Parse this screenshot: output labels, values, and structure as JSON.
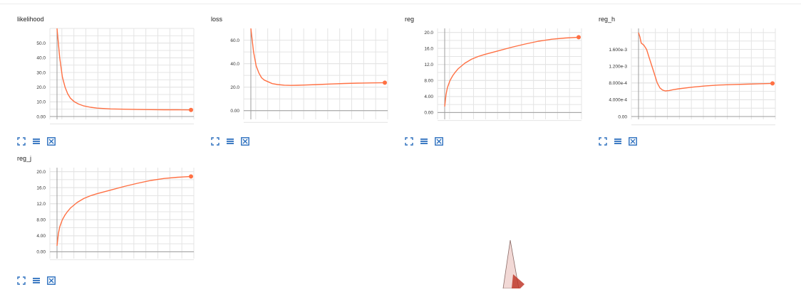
{
  "colors": {
    "series": "#ff7043",
    "grid": "#e4e4e4",
    "axis": "#9e9e9e",
    "control": "#2a6ebd"
  },
  "icons": [
    "fullscreen-icon",
    "list-icon",
    "fit-domain-icon"
  ],
  "chart_data": [
    {
      "type": "line",
      "title": "likelihood",
      "ylim": [
        0,
        60
      ],
      "yticks": [
        "0.00",
        "10.0",
        "20.0",
        "30.0",
        "40.0",
        "50.0"
      ],
      "ytick_values": [
        0,
        10,
        20,
        30,
        40,
        50
      ],
      "grid": true,
      "x": [
        0,
        0.02,
        0.04,
        0.06,
        0.08,
        0.1,
        0.13,
        0.16,
        0.2,
        0.25,
        0.3,
        0.4,
        0.5,
        0.6,
        0.7,
        0.8,
        0.9,
        1.0
      ],
      "y": [
        60,
        40,
        27,
        20,
        15.5,
        12.5,
        10,
        8.5,
        7.2,
        6.3,
        5.7,
        5.2,
        5.0,
        4.8,
        4.7,
        4.6,
        4.6,
        4.5
      ]
    },
    {
      "type": "line",
      "title": "loss",
      "ylim": [
        -5,
        70
      ],
      "yticks": [
        "0.00",
        "20.0",
        "40.0",
        "60.0"
      ],
      "ytick_values": [
        0,
        20,
        40,
        60
      ],
      "grid": true,
      "x": [
        0,
        0.02,
        0.04,
        0.06,
        0.08,
        0.1,
        0.13,
        0.16,
        0.2,
        0.25,
        0.3,
        0.35,
        0.4,
        0.5,
        0.6,
        0.7,
        0.8,
        0.9,
        1.0
      ],
      "y": [
        70,
        50,
        38,
        32,
        28,
        26,
        24.5,
        23,
        22.2,
        21.7,
        21.5,
        21.6,
        21.8,
        22.2,
        22.7,
        23.1,
        23.4,
        23.6,
        23.8
      ]
    },
    {
      "type": "line",
      "title": "reg",
      "ylim": [
        -1,
        21
      ],
      "yticks": [
        "0.00",
        "4.00",
        "8.00",
        "12.0",
        "16.0",
        "20.0"
      ],
      "ytick_values": [
        0,
        4,
        8,
        12,
        16,
        20
      ],
      "grid": true,
      "x": [
        0,
        0.01,
        0.02,
        0.04,
        0.06,
        0.08,
        0.1,
        0.15,
        0.2,
        0.25,
        0.3,
        0.4,
        0.5,
        0.6,
        0.7,
        0.8,
        0.9,
        1.0
      ],
      "y": [
        1.5,
        4.5,
        6.2,
        8.0,
        9.2,
        10.1,
        10.9,
        12.3,
        13.3,
        14.0,
        14.5,
        15.4,
        16.3,
        17.1,
        17.8,
        18.3,
        18.6,
        18.8
      ]
    },
    {
      "type": "line",
      "title": "reg_h",
      "ylim": [
        0,
        0.0021
      ],
      "yticks": [
        "0.00",
        "4.000e-4",
        "8.000e-4",
        "1.200e-3",
        "1.600e-3"
      ],
      "ytick_values": [
        0,
        0.0004,
        0.0008,
        0.0012,
        0.0016
      ],
      "grid": true,
      "x": [
        0,
        0.01,
        0.02,
        0.04,
        0.06,
        0.08,
        0.1,
        0.12,
        0.14,
        0.16,
        0.18,
        0.2,
        0.23,
        0.26,
        0.3,
        0.4,
        0.5,
        0.6,
        0.7,
        0.8,
        0.9,
        1.0
      ],
      "y": [
        0.002,
        0.0019,
        0.00175,
        0.0017,
        0.0016,
        0.0014,
        0.0012,
        0.001,
        0.0008,
        0.00068,
        0.00063,
        0.00061,
        0.00062,
        0.00064,
        0.00066,
        0.0007,
        0.00073,
        0.00075,
        0.00076,
        0.00077,
        0.00078,
        0.00079
      ]
    },
    {
      "type": "line",
      "title": "reg_j",
      "ylim": [
        -1,
        21
      ],
      "yticks": [
        "0.00",
        "4.00",
        "8.00",
        "12.0",
        "16.0",
        "20.0"
      ],
      "ytick_values": [
        0,
        4,
        8,
        12,
        16,
        20
      ],
      "grid": true,
      "x": [
        0,
        0.01,
        0.02,
        0.04,
        0.06,
        0.08,
        0.1,
        0.15,
        0.2,
        0.25,
        0.3,
        0.4,
        0.5,
        0.6,
        0.7,
        0.8,
        0.9,
        1.0
      ],
      "y": [
        1.5,
        4.5,
        6.2,
        8.0,
        9.2,
        10.1,
        10.9,
        12.3,
        13.3,
        14.0,
        14.5,
        15.4,
        16.3,
        17.1,
        17.8,
        18.3,
        18.6,
        18.8
      ]
    }
  ]
}
